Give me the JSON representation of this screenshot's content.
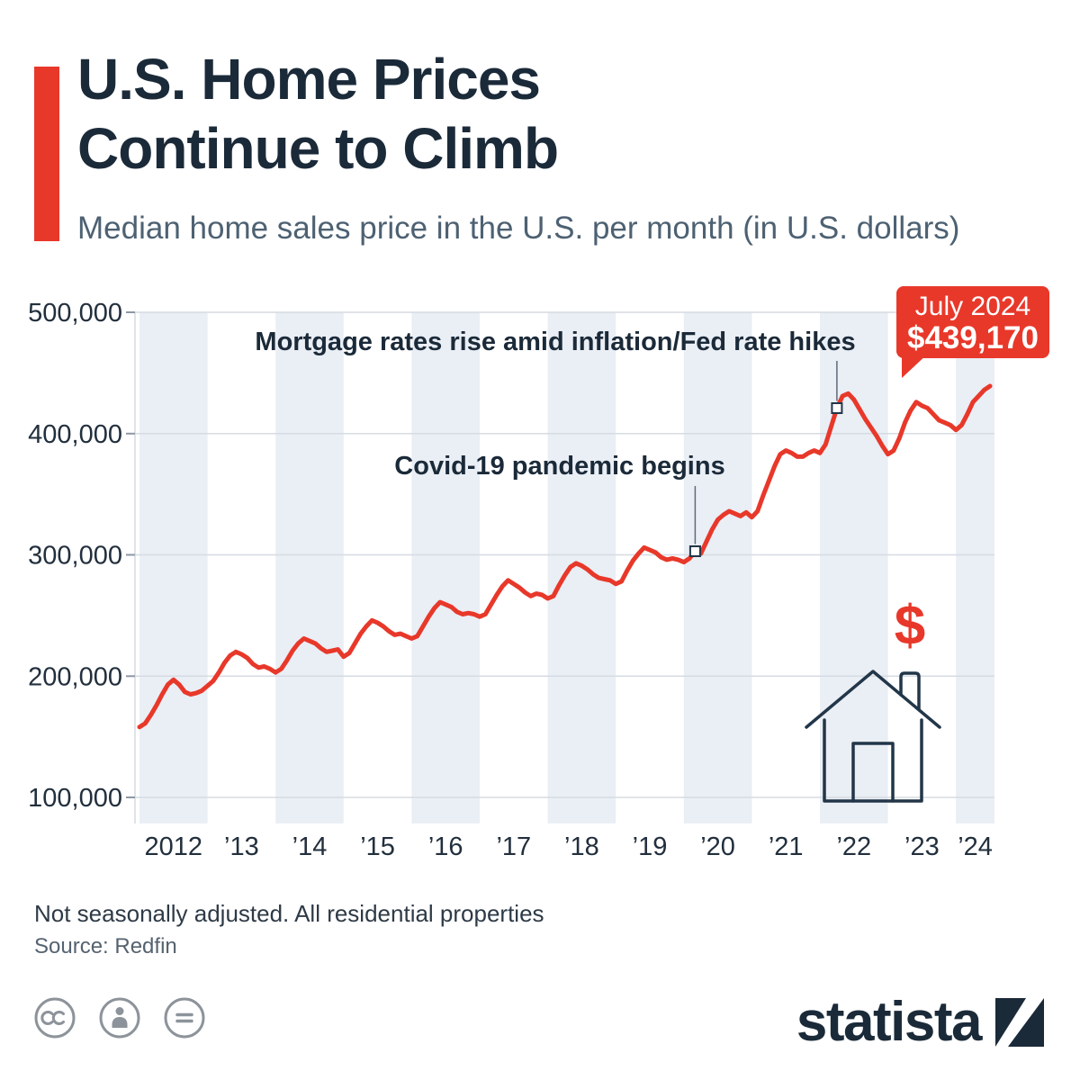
{
  "header": {
    "title_line1": "U.S. Home Prices",
    "title_line2": "Continue to Climb",
    "subtitle": "Median home sales price in the U.S. per month (in U.S. dollars)",
    "accent_color": "#e8382a"
  },
  "chart_data": {
    "type": "line",
    "title": "Median home sales price in the U.S. per month (in U.S. dollars)",
    "unit": "U.S. dollars",
    "x_tick_labels": [
      "2012",
      "’13",
      "’14",
      "’15",
      "’16",
      "’17",
      "’18",
      "’19",
      "’20",
      "’21",
      "’22",
      "’23",
      "’24"
    ],
    "y_ticks": [
      100000,
      200000,
      300000,
      400000,
      500000
    ],
    "y_tick_labels": [
      "100,000",
      "200,000",
      "300,000",
      "400,000",
      "500,000"
    ],
    "ylim": [
      100000,
      500000
    ],
    "grid": true,
    "legend": "none",
    "line_color": "#e8382a",
    "band_color": "#eaeef5",
    "series": [
      {
        "name": "Median home sales price",
        "start_month": "2012-01",
        "end_month": "2024-07",
        "values": [
          158000,
          161000,
          168000,
          176000,
          185000,
          193000,
          197000,
          193000,
          187000,
          185000,
          186000,
          188000,
          192000,
          196000,
          203000,
          211000,
          217000,
          220000,
          218000,
          215000,
          210000,
          207000,
          208000,
          206000,
          203000,
          206000,
          213000,
          221000,
          227000,
          231000,
          229000,
          227000,
          223000,
          220000,
          221000,
          222000,
          216000,
          219000,
          227000,
          235000,
          241000,
          246000,
          244000,
          241000,
          237000,
          234000,
          235000,
          233000,
          231000,
          233000,
          241000,
          249000,
          256000,
          261000,
          259000,
          257000,
          253000,
          251000,
          252000,
          251000,
          249000,
          251000,
          259000,
          267000,
          274000,
          279000,
          276000,
          273000,
          269000,
          266000,
          268000,
          267000,
          264000,
          266000,
          275000,
          283000,
          290000,
          293000,
          291000,
          288000,
          284000,
          281000,
          280000,
          279000,
          276000,
          278000,
          287000,
          295000,
          301000,
          306000,
          304000,
          302000,
          298000,
          296000,
          297000,
          296000,
          294000,
          297000,
          303000,
          301000,
          311000,
          321000,
          329000,
          333000,
          336000,
          334000,
          332000,
          335000,
          331000,
          336000,
          349000,
          361000,
          373000,
          383000,
          386000,
          384000,
          381000,
          381000,
          384000,
          386000,
          384000,
          391000,
          406000,
          421000,
          431000,
          433000,
          428000,
          420000,
          412000,
          405000,
          398000,
          390000,
          383000,
          386000,
          396000,
          409000,
          419000,
          426000,
          423000,
          421000,
          416000,
          411000,
          409000,
          407000,
          403000,
          407000,
          416000,
          426000,
          431000,
          436000,
          439170
        ]
      }
    ],
    "annotations": [
      {
        "label": "Covid-19 pandemic begins",
        "month": "2020-03",
        "month_index": 98
      },
      {
        "label": "Mortgage rates rise amid inflation/Fed rate hikes",
        "month": "2022-04",
        "month_index": 123
      }
    ],
    "callout": {
      "line1": "July 2024",
      "line2": "$439,170",
      "bg": "#e8382a",
      "text_color": "#ffffff"
    },
    "icons": {
      "dollar": "$",
      "house": "house-icon"
    }
  },
  "footer": {
    "note": "Not seasonally adjusted. All residential properties",
    "source": "Source: Redfin"
  },
  "branding": {
    "logo_text": "statista",
    "license_icons": [
      "cc-license-icon",
      "attribution-icon",
      "no-derivatives-icon"
    ]
  }
}
